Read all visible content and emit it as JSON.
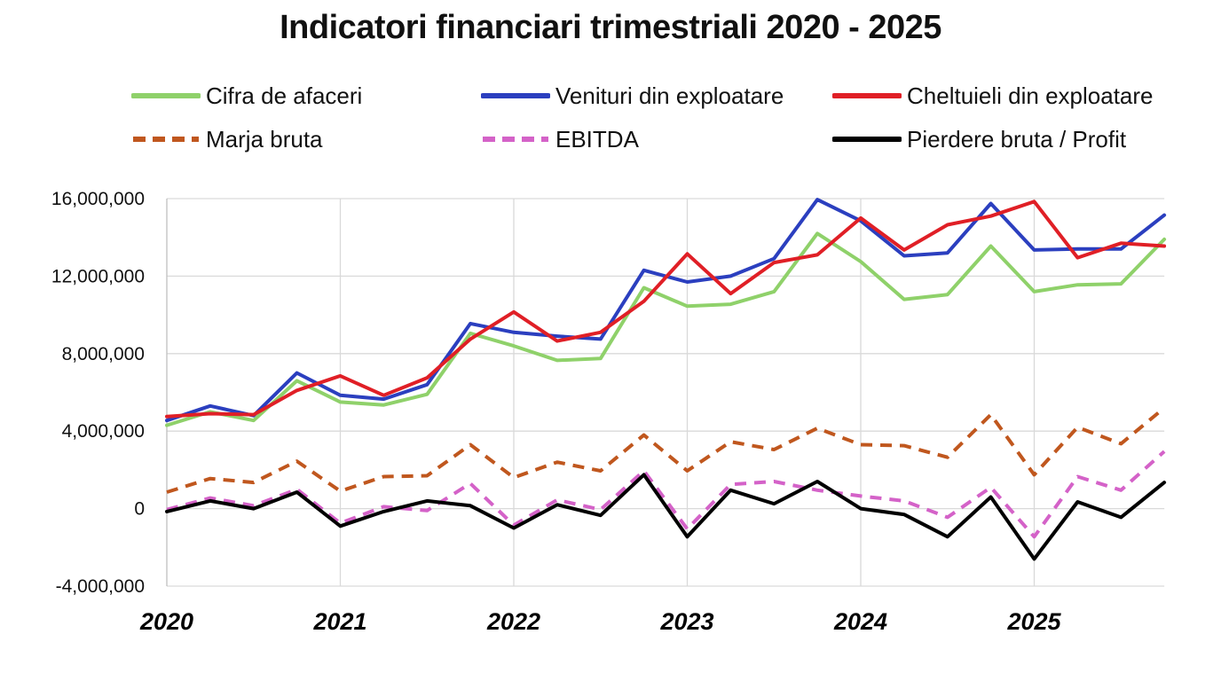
{
  "chart_data": {
    "type": "line",
    "title": "Indicatori financiari trimestriali 2020 - 2025",
    "xlabel": "",
    "ylabel": "",
    "ylim": [
      -4000000,
      16000000
    ],
    "yticks": [
      -4000000,
      0,
      4000000,
      8000000,
      12000000,
      16000000
    ],
    "ytick_labels": [
      "-4,000,000",
      "0",
      "4,000,000",
      "8,000,000",
      "12,000,000",
      "16,000,000"
    ],
    "x_year_labels": [
      "2020",
      "2021",
      "2022",
      "2023",
      "2024",
      "2025"
    ],
    "quarters": [
      "2020 Q1",
      "2020 Q2",
      "2020 Q3",
      "2020 Q4",
      "2021 Q1",
      "2021 Q2",
      "2021 Q3",
      "2021 Q4",
      "2022 Q1",
      "2022 Q2",
      "2022 Q3",
      "2022 Q4",
      "2023 Q1",
      "2023 Q2",
      "2023 Q3",
      "2023 Q4",
      "2024 Q1",
      "2024 Q2",
      "2024 Q3",
      "2024 Q4",
      "2025 Q1",
      "2025 Q2",
      "2025 Q3",
      "2025 Q4"
    ],
    "grid": "vertical lines at each year, horizontal lines at each y tick",
    "legend_position": "top",
    "series": [
      {
        "name": "Cifra de afaceri",
        "color": "#8fd16a",
        "dash": "solid",
        "values": [
          4300000,
          5000000,
          4550000,
          6600000,
          5500000,
          5350000,
          5900000,
          9050000,
          8400000,
          7650000,
          7750000,
          11400000,
          10450000,
          10550000,
          11200000,
          14200000,
          12750000,
          10800000,
          11050000,
          13550000,
          11200000,
          11550000,
          11600000,
          13900000
        ]
      },
      {
        "name": "Venituri din exploatare",
        "color": "#2b3fbf",
        "dash": "solid",
        "values": [
          4550000,
          5300000,
          4800000,
          7000000,
          5850000,
          5650000,
          6400000,
          9550000,
          9100000,
          8900000,
          8750000,
          12300000,
          11700000,
          12000000,
          12900000,
          15950000,
          14850000,
          13050000,
          13200000,
          15750000,
          13350000,
          13400000,
          13400000,
          15150000
        ]
      },
      {
        "name": "Cheltuieli din exploatare",
        "color": "#e01f26",
        "dash": "solid",
        "values": [
          4750000,
          4900000,
          4850000,
          6100000,
          6850000,
          5850000,
          6750000,
          8750000,
          10150000,
          8650000,
          9100000,
          10700000,
          13150000,
          11100000,
          12700000,
          13100000,
          15000000,
          13350000,
          14650000,
          15100000,
          15850000,
          12950000,
          13700000,
          13550000
        ]
      },
      {
        "name": "Marja bruta",
        "color": "#c0571e",
        "dash": "dashed",
        "values": [
          850000,
          1550000,
          1350000,
          2450000,
          900000,
          1650000,
          1700000,
          3300000,
          1600000,
          2400000,
          1950000,
          3800000,
          1950000,
          3450000,
          3050000,
          4150000,
          3300000,
          3250000,
          2650000,
          4850000,
          1750000,
          4200000,
          3350000,
          5200000
        ]
      },
      {
        "name": "EBITDA",
        "color": "#d462c8",
        "dash": "dashed",
        "values": [
          -50000,
          550000,
          150000,
          1000000,
          -750000,
          100000,
          -100000,
          1300000,
          -850000,
          450000,
          -50000,
          1950000,
          -1050000,
          1250000,
          1400000,
          950000,
          650000,
          400000,
          -450000,
          1100000,
          -1450000,
          1650000,
          950000,
          2950000
        ]
      },
      {
        "name": "Pierdere bruta / Profit",
        "color": "#000000",
        "dash": "solid",
        "values": [
          -150000,
          400000,
          0,
          850000,
          -900000,
          -150000,
          400000,
          150000,
          -1000000,
          200000,
          -350000,
          1750000,
          -1450000,
          950000,
          250000,
          1400000,
          0,
          -300000,
          -1450000,
          600000,
          -2600000,
          350000,
          -450000,
          1350000
        ]
      }
    ]
  }
}
